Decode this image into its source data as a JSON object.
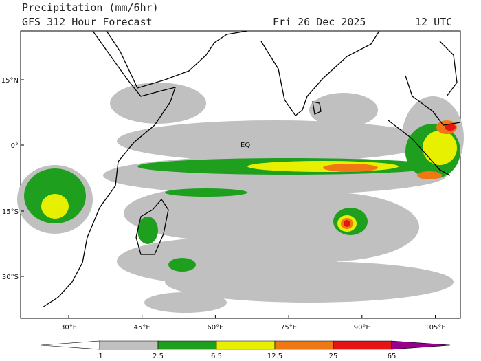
{
  "header": {
    "title": "Precipitation (mm/6hr)",
    "subtitle": "GFS 312 Hour Forecast",
    "date": "Fri 26 Dec 2025",
    "time": "12 UTC"
  },
  "map": {
    "lat_labels": [
      "15°N",
      "0°",
      "15°S",
      "30°S"
    ],
    "lon_labels": [
      "30°E",
      "45°E",
      "60°E",
      "75°E",
      "90°E",
      "105°E"
    ],
    "equator_label": "EQ"
  },
  "colorbar": {
    "labels": [
      ".1",
      "2.5",
      "6.5",
      "12.5",
      "25",
      "65"
    ],
    "colors": [
      "#ffffff",
      "#c0c0c0",
      "#1ea01e",
      "#e6f000",
      "#f07814",
      "#e61414",
      "#96008c"
    ]
  }
}
